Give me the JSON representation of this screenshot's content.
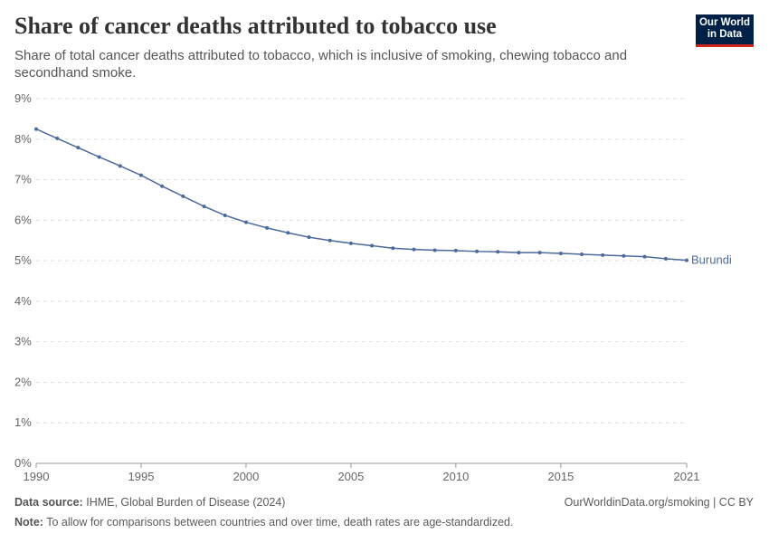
{
  "header": {
    "title": "Share of cancer deaths attributed to tobacco use",
    "subtitle": "Share of total cancer deaths attributed to tobacco, which is inclusive of smoking, chewing tobacco and secondhand smoke.",
    "logo": "Our World in Data"
  },
  "footer": {
    "source_label": "Data source:",
    "source": "IHME, Global Burden of Disease (2024)",
    "url": "OurWorldinData.org/smoking | CC BY",
    "note_label": "Note:",
    "note": "To allow for comparisons between countries and over time, death rates are age-standardized."
  },
  "chart_data": {
    "type": "line",
    "title": "Share of cancer deaths attributed to tobacco use",
    "ylim": [
      0,
      9
    ],
    "xlim": [
      1990,
      2021
    ],
    "y_ticks": [
      "0%",
      "1%",
      "2%",
      "3%",
      "4%",
      "5%",
      "6%",
      "7%",
      "8%",
      "9%"
    ],
    "x_ticks": [
      "1990",
      "1995",
      "2000",
      "2005",
      "2010",
      "2015",
      "2021"
    ],
    "grid": "horizontal dashed",
    "series": [
      {
        "name": "Burundi",
        "color": "#4c6a9c",
        "x": [
          1990,
          1991,
          1992,
          1993,
          1994,
          1995,
          1996,
          1997,
          1998,
          1999,
          2000,
          2001,
          2002,
          2003,
          2004,
          2005,
          2006,
          2007,
          2008,
          2009,
          2010,
          2011,
          2012,
          2013,
          2014,
          2015,
          2016,
          2017,
          2018,
          2019,
          2020,
          2021
        ],
        "values": [
          8.25,
          8.02,
          7.79,
          7.56,
          7.34,
          7.11,
          6.84,
          6.59,
          6.34,
          6.12,
          5.95,
          5.81,
          5.69,
          5.58,
          5.5,
          5.43,
          5.37,
          5.31,
          5.28,
          5.26,
          5.25,
          5.23,
          5.22,
          5.2,
          5.2,
          5.18,
          5.16,
          5.14,
          5.12,
          5.1,
          5.05,
          5.01
        ]
      }
    ]
  }
}
